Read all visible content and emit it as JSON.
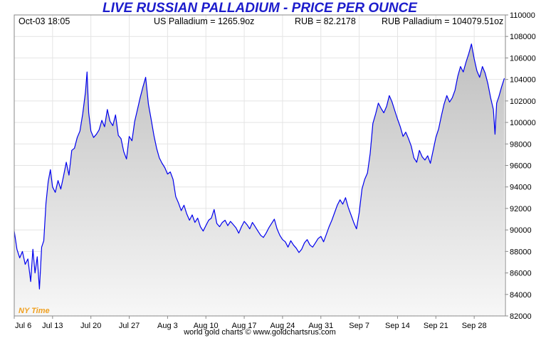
{
  "header": {
    "datetime": "Oct-03  18:05",
    "us_price": "US Palladium = 1265.9oz",
    "rub_rate": "RUB = 82.2178",
    "rub_price": "RUB Palladium = 104079.51oz"
  },
  "timezone_label": "NY Time",
  "footer": "world gold charts © www.goldchartsrus.com",
  "colors": {
    "title": "#1c1ccc",
    "line": "#0000ee",
    "timezone": "#f0a020"
  },
  "chart_data": {
    "type": "area",
    "title": "LIVE RUSSIAN PALLADIUM - PRICE PER OUNCE",
    "xlabel": "",
    "ylabel": "",
    "ylim": [
      82000,
      110000
    ],
    "y_ticks": [
      82000,
      84000,
      86000,
      88000,
      90000,
      92000,
      94000,
      96000,
      98000,
      100000,
      102000,
      104000,
      106000,
      108000,
      110000
    ],
    "x_ticks": [
      {
        "label": "Jul 6",
        "day": 0
      },
      {
        "label": "Jul 13",
        "day": 7
      },
      {
        "label": "Jul 20",
        "day": 14
      },
      {
        "label": "Jul 27",
        "day": 21
      },
      {
        "label": "Aug 3",
        "day": 28
      },
      {
        "label": "Aug 10",
        "day": 35
      },
      {
        "label": "Aug 17",
        "day": 42
      },
      {
        "label": "Aug 24",
        "day": 49
      },
      {
        "label": "Aug 31",
        "day": 56
      },
      {
        "label": "Sep 7",
        "day": 63
      },
      {
        "label": "Sep 14",
        "day": 70
      },
      {
        "label": "Sep 21",
        "day": 77
      },
      {
        "label": "Sep 28",
        "day": 84
      }
    ],
    "x_range_days": [
      0,
      89.7
    ],
    "grid": true,
    "series": [
      {
        "values": [
          [
            0,
            89900
          ],
          [
            0.5,
            88200
          ],
          [
            1,
            87400
          ],
          [
            1.5,
            88000
          ],
          [
            2,
            86800
          ],
          [
            2.5,
            87300
          ],
          [
            3,
            85200
          ],
          [
            3.4,
            88200
          ],
          [
            3.8,
            86000
          ],
          [
            4.2,
            87500
          ],
          [
            4.6,
            84500
          ],
          [
            5,
            88400
          ],
          [
            5.4,
            89000
          ],
          [
            5.8,
            92500
          ],
          [
            6.2,
            94500
          ],
          [
            6.6,
            95600
          ],
          [
            7.0,
            94000
          ],
          [
            7.5,
            93500
          ],
          [
            8,
            94600
          ],
          [
            8.5,
            93800
          ],
          [
            9,
            95000
          ],
          [
            9.5,
            96300
          ],
          [
            10,
            95100
          ],
          [
            10.5,
            97400
          ],
          [
            11,
            97600
          ],
          [
            11.5,
            98600
          ],
          [
            12,
            99200
          ],
          [
            12.5,
            100800
          ],
          [
            13,
            102800
          ],
          [
            13.3,
            104700
          ],
          [
            13.6,
            100900
          ],
          [
            14,
            99200
          ],
          [
            14.5,
            98600
          ],
          [
            15,
            98900
          ],
          [
            15.5,
            99300
          ],
          [
            16,
            100200
          ],
          [
            16.5,
            99600
          ],
          [
            17,
            101200
          ],
          [
            17.5,
            100100
          ],
          [
            18,
            99700
          ],
          [
            18.5,
            100700
          ],
          [
            19,
            98800
          ],
          [
            19.5,
            98500
          ],
          [
            20,
            97300
          ],
          [
            20.5,
            96600
          ],
          [
            21,
            98700
          ],
          [
            21.5,
            98300
          ],
          [
            22,
            100100
          ],
          [
            22.5,
            101200
          ],
          [
            23,
            102300
          ],
          [
            23.5,
            103300
          ],
          [
            24,
            104200
          ],
          [
            24.5,
            101700
          ],
          [
            25,
            100300
          ],
          [
            25.5,
            98800
          ],
          [
            26,
            97600
          ],
          [
            26.5,
            96700
          ],
          [
            27,
            96200
          ],
          [
            27.5,
            95800
          ],
          [
            28,
            95200
          ],
          [
            28.5,
            95400
          ],
          [
            29,
            94700
          ],
          [
            29.5,
            93100
          ],
          [
            30,
            92500
          ],
          [
            30.5,
            91800
          ],
          [
            31,
            92300
          ],
          [
            31.5,
            91500
          ],
          [
            32,
            90900
          ],
          [
            32.5,
            91400
          ],
          [
            33,
            90700
          ],
          [
            33.5,
            91100
          ],
          [
            34,
            90300
          ],
          [
            34.5,
            89900
          ],
          [
            35,
            90400
          ],
          [
            35.5,
            90900
          ],
          [
            36,
            91100
          ],
          [
            36.5,
            91900
          ],
          [
            37,
            90600
          ],
          [
            37.5,
            90300
          ],
          [
            38,
            90700
          ],
          [
            38.5,
            90900
          ],
          [
            39,
            90400
          ],
          [
            39.5,
            90800
          ],
          [
            40,
            90500
          ],
          [
            40.5,
            90200
          ],
          [
            41,
            89700
          ],
          [
            41.5,
            90300
          ],
          [
            42,
            90800
          ],
          [
            42.5,
            90500
          ],
          [
            43,
            90100
          ],
          [
            43.5,
            90700
          ],
          [
            44,
            90300
          ],
          [
            44.5,
            89900
          ],
          [
            45,
            89500
          ],
          [
            45.5,
            89300
          ],
          [
            46,
            89700
          ],
          [
            46.5,
            90200
          ],
          [
            47,
            90600
          ],
          [
            47.5,
            91000
          ],
          [
            48,
            90100
          ],
          [
            48.5,
            89500
          ],
          [
            49,
            89100
          ],
          [
            49.5,
            88900
          ],
          [
            50,
            88400
          ],
          [
            50.5,
            89000
          ],
          [
            51,
            88600
          ],
          [
            51.5,
            88300
          ],
          [
            52,
            87900
          ],
          [
            52.5,
            88200
          ],
          [
            53,
            88800
          ],
          [
            53.5,
            89100
          ],
          [
            54,
            88600
          ],
          [
            54.5,
            88400
          ],
          [
            55,
            88800
          ],
          [
            55.5,
            89200
          ],
          [
            56,
            89400
          ],
          [
            56.5,
            88900
          ],
          [
            57,
            89600
          ],
          [
            57.5,
            90300
          ],
          [
            58,
            90900
          ],
          [
            58.5,
            91600
          ],
          [
            59,
            92300
          ],
          [
            59.5,
            92800
          ],
          [
            60,
            92400
          ],
          [
            60.5,
            93000
          ],
          [
            61,
            92100
          ],
          [
            61.5,
            91400
          ],
          [
            62,
            90700
          ],
          [
            62.5,
            90100
          ],
          [
            63,
            91600
          ],
          [
            63.5,
            93800
          ],
          [
            64,
            94700
          ],
          [
            64.5,
            95300
          ],
          [
            65,
            97100
          ],
          [
            65.5,
            99900
          ],
          [
            66,
            100800
          ],
          [
            66.5,
            101800
          ],
          [
            67,
            101300
          ],
          [
            67.5,
            100900
          ],
          [
            68,
            101500
          ],
          [
            68.5,
            102500
          ],
          [
            69,
            101900
          ],
          [
            69.5,
            101100
          ],
          [
            70,
            100300
          ],
          [
            70.5,
            99600
          ],
          [
            71,
            98700
          ],
          [
            71.5,
            99100
          ],
          [
            72,
            98500
          ],
          [
            72.5,
            97800
          ],
          [
            73,
            96700
          ],
          [
            73.5,
            96300
          ],
          [
            74,
            97400
          ],
          [
            74.5,
            96800
          ],
          [
            75,
            96500
          ],
          [
            75.5,
            96900
          ],
          [
            76,
            96200
          ],
          [
            76.5,
            97400
          ],
          [
            77,
            98600
          ],
          [
            77.5,
            99400
          ],
          [
            78,
            100600
          ],
          [
            78.5,
            101700
          ],
          [
            79,
            102500
          ],
          [
            79.5,
            101900
          ],
          [
            80,
            102300
          ],
          [
            80.5,
            103000
          ],
          [
            81,
            104300
          ],
          [
            81.5,
            105200
          ],
          [
            82,
            104700
          ],
          [
            82.5,
            105600
          ],
          [
            83,
            106400
          ],
          [
            83.5,
            107300
          ],
          [
            84,
            105900
          ],
          [
            84.5,
            104800
          ],
          [
            85,
            104200
          ],
          [
            85.5,
            105200
          ],
          [
            86,
            104600
          ],
          [
            86.5,
            103600
          ],
          [
            87,
            102300
          ],
          [
            87.5,
            101200
          ],
          [
            87.8,
            98900
          ],
          [
            88.1,
            101800
          ],
          [
            88.5,
            102400
          ],
          [
            89,
            103300
          ],
          [
            89.5,
            104100
          ]
        ]
      }
    ]
  }
}
